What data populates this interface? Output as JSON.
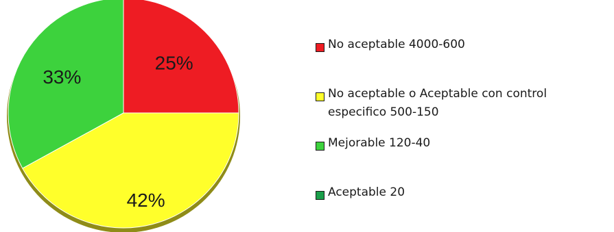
{
  "chart_data": {
    "type": "pie",
    "title": "",
    "slices": [
      {
        "label": "No aceptable 4000-600",
        "value": 25,
        "display": "25%",
        "color": "#ee1c23"
      },
      {
        "label": "No aceptable o Aceptable con control\nespecifico 500-150",
        "value": 42,
        "display": "42%",
        "color": "#ffff2b"
      },
      {
        "label": "Mejorable 120-40",
        "value": 33,
        "display": "33%",
        "color": "#3dd23d"
      },
      {
        "label": "Aceptable 20",
        "value": 0,
        "display": "",
        "color": "#1a9e4a"
      }
    ],
    "legend": {
      "placement": "right",
      "entries": [
        {
          "label": "No aceptable 4000-600",
          "color": "#ee1c23"
        },
        {
          "label": "No aceptable o Aceptable con control\nespecifico 500-150",
          "color": "#ffff2b"
        },
        {
          "label": "Mejorable 120-40",
          "color": "#3dd23d"
        },
        {
          "label": "Aceptable 20",
          "color": "#1a9e4a"
        }
      ]
    }
  }
}
